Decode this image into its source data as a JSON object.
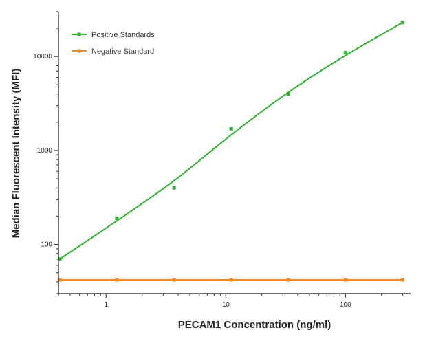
{
  "chart_data": {
    "type": "scatter",
    "xlabel": "PECAM1 Concentration (ng/ml)",
    "ylabel": "Median Fluorescent Intensity (MFI)",
    "x_scale": "log",
    "y_scale": "log",
    "xlim": [
      0.4,
      350
    ],
    "ylim": [
      30,
      30000
    ],
    "x_ticks": [
      1,
      10,
      100
    ],
    "x_tick_labels": [
      "1",
      "10",
      "100"
    ],
    "y_ticks": [
      100,
      1000,
      10000
    ],
    "y_tick_labels": [
      "100",
      "1000",
      "10000"
    ],
    "legend_position": "top-left",
    "grid": false,
    "series": [
      {
        "name": "Positive Standards",
        "color": "#2db52d",
        "fit": "4PL curve",
        "x": [
          0.41,
          1.23,
          3.7,
          11.1,
          33.3,
          100,
          300
        ],
        "y": [
          70,
          190,
          400,
          1700,
          4000,
          11000,
          23000
        ]
      },
      {
        "name": "Negative Standard",
        "color": "#f08a24",
        "fit": "line",
        "x": [
          0.41,
          1.23,
          3.7,
          11.1,
          33.3,
          100,
          300
        ],
        "y": [
          42,
          42,
          42,
          42,
          42,
          42,
          42
        ]
      }
    ]
  }
}
